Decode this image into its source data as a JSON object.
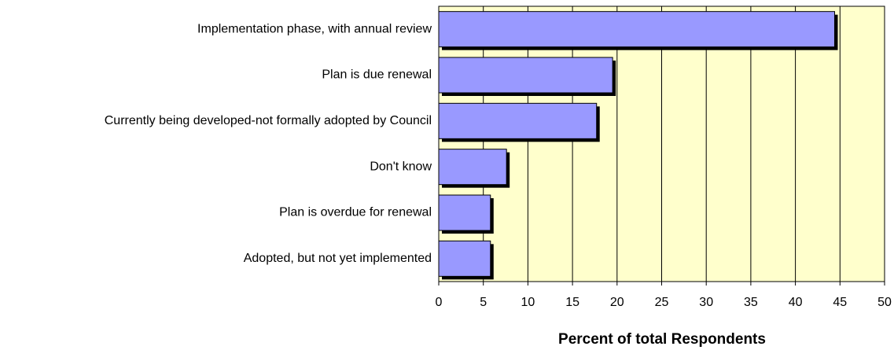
{
  "chart_data": {
    "type": "bar",
    "orientation": "horizontal",
    "categories": [
      "Implementation phase, with annual review",
      "Plan is due renewal",
      "Currently being developed-not formally adopted by Council",
      "Don't know",
      "Plan is overdue for renewal",
      "Adopted, but not yet implemented"
    ],
    "values": [
      44.4,
      19.5,
      17.7,
      7.6,
      5.8,
      5.8
    ],
    "color": "#9999ff",
    "x_label": "Percent of total Respondents",
    "xlim": [
      0,
      50
    ],
    "xticks": [
      0,
      5,
      10,
      15,
      20,
      25,
      30,
      35,
      40,
      45,
      50
    ],
    "grid": true
  }
}
